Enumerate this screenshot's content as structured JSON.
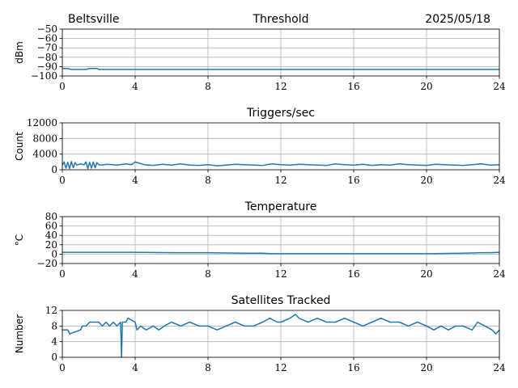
{
  "header": {
    "location": "Beltsville",
    "date": "2025/05/18"
  },
  "chart_data": [
    {
      "type": "line",
      "title": "Threshold",
      "xlabel": "",
      "ylabel": "dBm",
      "xlim": [
        0,
        24
      ],
      "ylim": [
        -100,
        -50
      ],
      "xticks": [
        0,
        4,
        8,
        12,
        16,
        20,
        24
      ],
      "yticks": [
        -100,
        -90,
        -80,
        -70,
        -60,
        -50
      ],
      "ytick_labels": [
        "−100",
        "−90",
        "−80",
        "−70",
        "−60",
        "−50"
      ],
      "grid": true,
      "series": [
        {
          "x": [
            0,
            0.3,
            0.5,
            1.3,
            1.5,
            1.9,
            2.0,
            24
          ],
          "y": [
            -92,
            -92,
            -93,
            -93,
            -92,
            -92,
            -93,
            -93
          ]
        }
      ]
    },
    {
      "type": "line",
      "title": "Triggers/sec",
      "xlabel": "",
      "ylabel": "Count",
      "xlim": [
        0,
        24
      ],
      "ylim": [
        0,
        12000
      ],
      "xticks": [
        0,
        4,
        8,
        12,
        16,
        20,
        24
      ],
      "yticks": [
        0,
        4000,
        8000,
        12000
      ],
      "ytick_labels": [
        "0",
        "4000",
        "8000",
        "12000"
      ],
      "grid": true,
      "series": [
        {
          "x": [
            0,
            0.1,
            0.2,
            0.3,
            0.4,
            0.5,
            0.6,
            0.7,
            0.8,
            1.0,
            1.2,
            1.3,
            1.4,
            1.5,
            1.6,
            1.7,
            1.8,
            1.9,
            2.0,
            2.1,
            2.5,
            3.0,
            3.5,
            3.8,
            4.0,
            4.5,
            5.0,
            5.5,
            6.0,
            6.5,
            7.0,
            7.5,
            8.0,
            8.5,
            9.0,
            9.5,
            10.0,
            10.5,
            11.0,
            11.5,
            12.0,
            12.5,
            13.0,
            13.5,
            14.0,
            14.5,
            15.0,
            15.5,
            16.0,
            16.5,
            17.0,
            17.5,
            18.0,
            18.5,
            19.0,
            19.5,
            20.0,
            20.5,
            21.0,
            21.5,
            22.0,
            22.5,
            23.0,
            23.5,
            24.0
          ],
          "y": [
            1200,
            2000,
            400,
            1900,
            300,
            2100,
            500,
            1800,
            1200,
            1500,
            1300,
            2000,
            300,
            1900,
            400,
            2000,
            500,
            1800,
            1300,
            1200,
            1400,
            1200,
            1500,
            1300,
            2000,
            1300,
            1100,
            1400,
            1200,
            1500,
            1200,
            1100,
            1300,
            1000,
            1200,
            1400,
            1300,
            1200,
            1100,
            1500,
            1300,
            1200,
            1400,
            1300,
            1200,
            1100,
            1500,
            1300,
            1200,
            1400,
            1100,
            1300,
            1200,
            1500,
            1300,
            1200,
            1100,
            1400,
            1300,
            1200,
            1100,
            1300,
            1500,
            1200,
            1300
          ]
        }
      ]
    },
    {
      "type": "line",
      "title": "Temperature",
      "xlabel": "",
      "ylabel": "°C",
      "xlim": [
        0,
        24
      ],
      "ylim": [
        -20,
        80
      ],
      "xticks": [
        0,
        4,
        8,
        12,
        16,
        20,
        24
      ],
      "yticks": [
        -20,
        0,
        20,
        40,
        60,
        80
      ],
      "ytick_labels": [
        "−20",
        "0",
        "20",
        "40",
        "60",
        "80"
      ],
      "grid": true,
      "series": [
        {
          "x": [
            0,
            2,
            4,
            6,
            8,
            10,
            11,
            11.5,
            12,
            14,
            16,
            18,
            20,
            22,
            23,
            23.5,
            24
          ],
          "y": [
            4,
            4,
            4,
            3,
            3,
            2,
            2,
            1,
            1,
            1,
            1,
            1,
            1,
            2,
            3,
            3,
            4
          ]
        }
      ]
    },
    {
      "type": "line",
      "title": "Satellites Tracked",
      "xlabel": "",
      "ylabel": "Number",
      "xlim": [
        0,
        24
      ],
      "ylim": [
        0,
        12
      ],
      "xticks": [
        0,
        4,
        8,
        12,
        16,
        20,
        24
      ],
      "yticks": [
        0,
        4,
        8,
        12
      ],
      "ytick_labels": [
        "0",
        "4",
        "8",
        "12"
      ],
      "grid": true,
      "series": [
        {
          "x": [
            0,
            0.3,
            0.4,
            1.0,
            1.1,
            1.3,
            1.5,
            2.0,
            2.2,
            2.4,
            2.6,
            2.8,
            3.0,
            3.2,
            3.25,
            3.3,
            3.5,
            3.6,
            4.0,
            4.1,
            4.3,
            4.6,
            5.0,
            5.3,
            5.6,
            6.0,
            6.5,
            7.0,
            7.5,
            8.0,
            8.5,
            9.0,
            9.5,
            10.0,
            10.5,
            11.0,
            11.4,
            11.8,
            12.0,
            12.5,
            12.8,
            13.0,
            13.5,
            14.0,
            14.5,
            15.0,
            15.5,
            16.0,
            16.5,
            17.0,
            17.5,
            18.0,
            18.5,
            19.0,
            19.5,
            20.0,
            20.4,
            20.8,
            21.2,
            21.6,
            22.0,
            22.5,
            22.8,
            23.2,
            23.6,
            23.8,
            24.0
          ],
          "y": [
            7,
            7,
            6,
            7,
            8,
            8,
            9,
            9,
            8,
            9,
            8,
            9,
            8,
            9,
            0,
            9,
            9,
            10,
            9,
            7,
            8,
            7,
            8,
            7,
            8,
            9,
            8,
            9,
            8,
            8,
            7,
            8,
            9,
            8,
            8,
            9,
            10,
            9,
            9,
            10,
            11,
            10,
            9,
            10,
            9,
            9,
            10,
            9,
            8,
            9,
            10,
            9,
            9,
            8,
            9,
            8,
            7,
            8,
            7,
            8,
            8,
            7,
            9,
            8,
            7,
            6,
            7
          ]
        }
      ]
    }
  ]
}
